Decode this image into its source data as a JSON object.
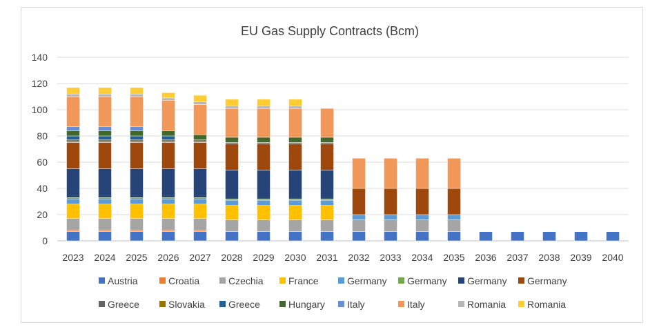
{
  "chart_data": {
    "type": "bar",
    "stacked": true,
    "title": "EU Gas Supply Contracts (Bcm)",
    "xlabel": "",
    "ylabel": "",
    "ylim": [
      0,
      140
    ],
    "yticks": [
      0,
      20,
      40,
      60,
      80,
      100,
      120,
      140
    ],
    "grid": true,
    "legend_position": "bottom",
    "categories": [
      "2023",
      "2024",
      "2025",
      "2026",
      "2027",
      "2028",
      "2029",
      "2030",
      "2031",
      "2032",
      "2033",
      "2034",
      "2035",
      "2036",
      "2037",
      "2038",
      "2039",
      "2040"
    ],
    "series": [
      {
        "name": "Austria",
        "color": "#4472C4",
        "values": [
          7,
          7,
          7,
          7,
          7,
          7,
          7,
          7,
          7,
          7,
          7,
          7,
          7,
          7,
          7,
          7,
          7,
          7
        ]
      },
      {
        "name": "Croatia",
        "color": "#ED7D31",
        "values": [
          1,
          1,
          1,
          1,
          1,
          0,
          0,
          0,
          0,
          0,
          0,
          0,
          0,
          0,
          0,
          0,
          0,
          0
        ]
      },
      {
        "name": "Czechia",
        "color": "#A5A5A5",
        "values": [
          9,
          9,
          9,
          9,
          9,
          9,
          9,
          9,
          9,
          9,
          9,
          9,
          9,
          0,
          0,
          0,
          0,
          0
        ]
      },
      {
        "name": "France",
        "color": "#FFC000",
        "values": [
          11,
          11,
          11,
          11,
          11,
          11,
          11,
          11,
          11,
          0,
          0,
          0,
          0,
          0,
          0,
          0,
          0,
          0
        ]
      },
      {
        "name": "Germany",
        "color": "#5B9BD5",
        "values": [
          4,
          4,
          4,
          4,
          4,
          4,
          4,
          4,
          4,
          4,
          4,
          4,
          4,
          0,
          0,
          0,
          0,
          0
        ]
      },
      {
        "name": "Germany",
        "color": "#70AD47",
        "values": [
          1,
          1,
          1,
          1,
          1,
          1,
          1,
          1,
          1,
          0,
          0,
          0,
          0,
          0,
          0,
          0,
          0,
          0
        ]
      },
      {
        "name": "Germany",
        "color": "#264478",
        "values": [
          22,
          22,
          22,
          22,
          22,
          22,
          22,
          22,
          22,
          0,
          0,
          0,
          0,
          0,
          0,
          0,
          0,
          0
        ]
      },
      {
        "name": "Germany",
        "color": "#9E480E",
        "values": [
          20,
          20,
          20,
          20,
          20,
          20,
          20,
          20,
          20,
          20,
          20,
          20,
          20,
          0,
          0,
          0,
          0,
          0
        ]
      },
      {
        "name": "Greece",
        "color": "#636363",
        "values": [
          1,
          1,
          1,
          1,
          1,
          1,
          1,
          1,
          1,
          0,
          0,
          0,
          0,
          0,
          0,
          0,
          0,
          0
        ]
      },
      {
        "name": "Slovakia",
        "color": "#997300",
        "values": [
          1,
          1,
          1,
          1,
          1,
          0,
          0,
          0,
          0,
          0,
          0,
          0,
          0,
          0,
          0,
          0,
          0,
          0
        ]
      },
      {
        "name": "Greece",
        "color": "#255E91",
        "values": [
          3,
          3,
          3,
          3,
          0,
          0,
          0,
          0,
          0,
          0,
          0,
          0,
          0,
          0,
          0,
          0,
          0,
          0
        ]
      },
      {
        "name": "Hungary",
        "color": "#43682B",
        "values": [
          4,
          4,
          4,
          4,
          4,
          4,
          4,
          4,
          4,
          0,
          0,
          0,
          0,
          0,
          0,
          0,
          0,
          0
        ]
      },
      {
        "name": "Italy",
        "color": "#698ED0",
        "values": [
          3,
          3,
          3,
          0,
          0,
          0,
          0,
          0,
          0,
          0,
          0,
          0,
          0,
          0,
          0,
          0,
          0,
          0
        ]
      },
      {
        "name": "Italy",
        "color": "#F1975A",
        "values": [
          23,
          23,
          23,
          23,
          23,
          22,
          22,
          22,
          22,
          23,
          23,
          23,
          23,
          0,
          0,
          0,
          0,
          0
        ]
      },
      {
        "name": "Romania",
        "color": "#B7B7B7",
        "values": [
          2,
          2,
          2,
          2,
          2,
          2,
          2,
          2,
          0,
          0,
          0,
          0,
          0,
          0,
          0,
          0,
          0,
          0
        ]
      },
      {
        "name": "Romania",
        "color": "#FFCD33",
        "values": [
          5,
          5,
          5,
          4,
          5,
          5,
          5,
          5,
          0,
          0,
          0,
          0,
          0,
          0,
          0,
          0,
          0,
          0
        ]
      }
    ]
  }
}
